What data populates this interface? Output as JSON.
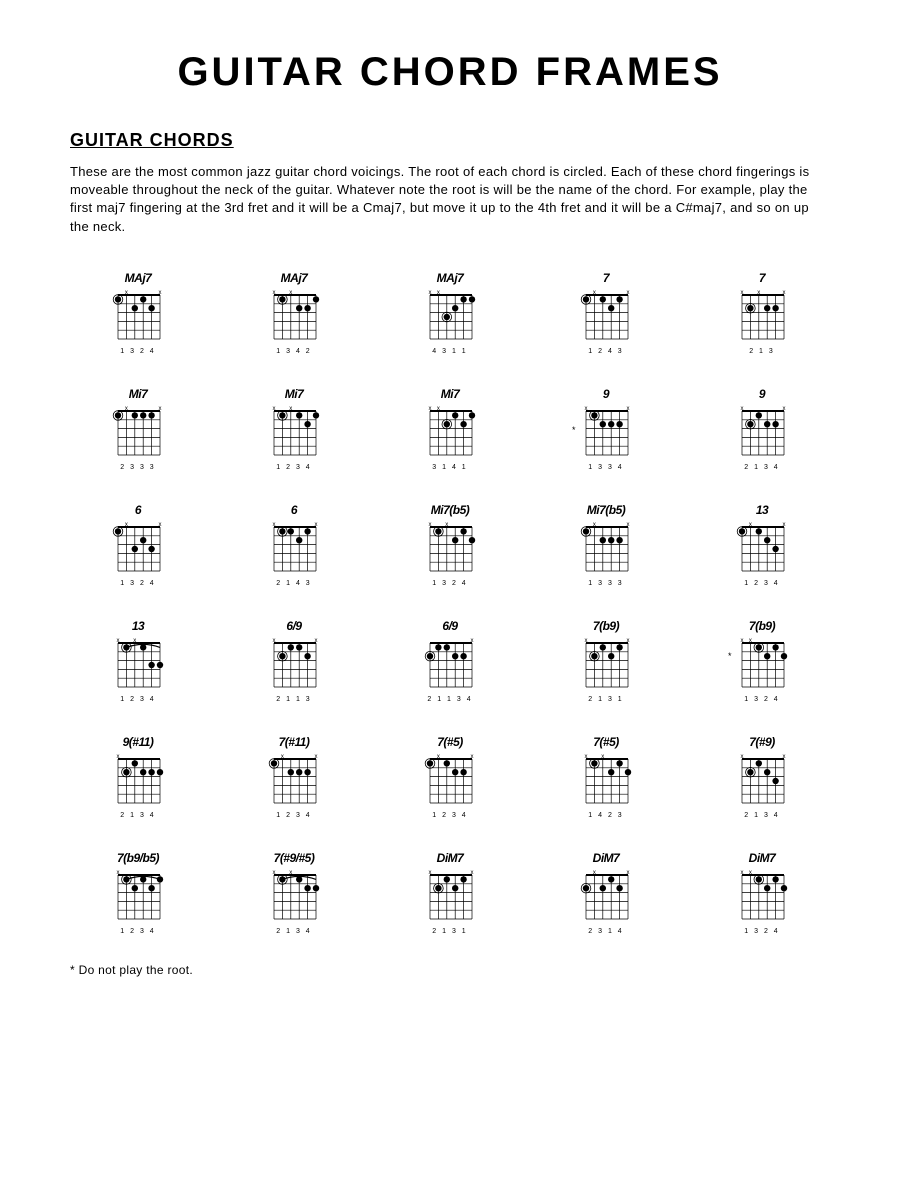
{
  "title": "GUITAR CHORD FRAMES",
  "subtitle": "GUITAR CHORDS",
  "intro": "These are the most common jazz guitar chord voicings. The root of each chord is circled. Each of these chord fingerings is moveable throughout the neck of the guitar. Whatever note the root is will be the name of the chord. For example, play the first maj7 fingering at the 3rd fret and it will be a Cmaj7, but move it up to the 4th fret and it will be a C#maj7, and so on up the neck.",
  "footnote": "* Do not play the root.",
  "diagram_style": {
    "strings": 6,
    "frets": 5,
    "width": 52,
    "height": 58,
    "line_color": "#000000",
    "dot_color": "#000000",
    "dot_radius": 3.2,
    "root_outer_radius": 4.8,
    "nut_stroke": 2,
    "grid_stroke": 0.7
  },
  "chords": [
    {
      "label": "MAj7",
      "fingers": "1 3 2 4",
      "star": false,
      "dots": [
        {
          "s": 0,
          "f": 1,
          "r": true
        },
        {
          "s": 2,
          "f": 2
        },
        {
          "s": 3,
          "f": 1
        },
        {
          "s": 4,
          "f": 2
        }
      ],
      "muted": [
        1,
        5
      ]
    },
    {
      "label": "MAj7",
      "fingers": "1 3 4 2",
      "star": false,
      "dots": [
        {
          "s": 1,
          "f": 1,
          "r": true
        },
        {
          "s": 3,
          "f": 2
        },
        {
          "s": 4,
          "f": 2
        },
        {
          "s": 5,
          "f": 1
        }
      ],
      "muted": [
        0,
        2
      ]
    },
    {
      "label": "MAj7",
      "fingers": "4 3 1 1",
      "star": false,
      "dots": [
        {
          "s": 2,
          "f": 3,
          "r": true
        },
        {
          "s": 3,
          "f": 2
        },
        {
          "s": 4,
          "f": 1
        },
        {
          "s": 5,
          "f": 1
        }
      ],
      "muted": [
        0,
        1
      ]
    },
    {
      "label": "7",
      "fingers": "1 2 4 3",
      "star": false,
      "dots": [
        {
          "s": 0,
          "f": 1,
          "r": true
        },
        {
          "s": 2,
          "f": 1
        },
        {
          "s": 3,
          "f": 2
        },
        {
          "s": 4,
          "f": 1
        }
      ],
      "muted": [
        1,
        5
      ]
    },
    {
      "label": "7",
      "fingers": "2 1 3",
      "star": false,
      "dots": [
        {
          "s": 1,
          "f": 2,
          "r": true
        },
        {
          "s": 3,
          "f": 2
        },
        {
          "s": 4,
          "f": 2
        }
      ],
      "muted": [
        0,
        2,
        5
      ]
    },
    {
      "label": "Mi7",
      "fingers": "2   3 3 3",
      "star": false,
      "dots": [
        {
          "s": 0,
          "f": 1,
          "r": true
        },
        {
          "s": 2,
          "f": 1
        },
        {
          "s": 3,
          "f": 1
        },
        {
          "s": 4,
          "f": 1
        }
      ],
      "muted": [
        1,
        5
      ]
    },
    {
      "label": "Mi7",
      "fingers": "1   2 3 4",
      "star": false,
      "dots": [
        {
          "s": 1,
          "f": 1,
          "r": true
        },
        {
          "s": 3,
          "f": 1
        },
        {
          "s": 4,
          "f": 2
        },
        {
          "s": 5,
          "f": 1
        }
      ],
      "muted": [
        0,
        2
      ]
    },
    {
      "label": "Mi7",
      "fingers": "3 1 4 1",
      "star": false,
      "dots": [
        {
          "s": 2,
          "f": 2,
          "r": true
        },
        {
          "s": 3,
          "f": 1
        },
        {
          "s": 4,
          "f": 2
        },
        {
          "s": 5,
          "f": 1
        }
      ],
      "muted": [
        0,
        1
      ]
    },
    {
      "label": "9",
      "fingers": "1 3 3 4",
      "star": true,
      "starTop": 20,
      "dots": [
        {
          "s": 1,
          "f": 1,
          "r": true
        },
        {
          "s": 2,
          "f": 2
        },
        {
          "s": 3,
          "f": 2
        },
        {
          "s": 4,
          "f": 2
        }
      ],
      "muted": [
        0,
        5
      ]
    },
    {
      "label": "9",
      "fingers": "2 1 3 4",
      "star": false,
      "dots": [
        {
          "s": 1,
          "f": 2,
          "r": true
        },
        {
          "s": 2,
          "f": 1
        },
        {
          "s": 3,
          "f": 2
        },
        {
          "s": 4,
          "f": 2
        }
      ],
      "muted": [
        0,
        5
      ]
    },
    {
      "label": "6",
      "fingers": "1 3 2 4",
      "star": false,
      "dots": [
        {
          "s": 0,
          "f": 1,
          "r": true
        },
        {
          "s": 2,
          "f": 3
        },
        {
          "s": 3,
          "f": 2
        },
        {
          "s": 4,
          "f": 3
        }
      ],
      "muted": [
        1,
        5
      ]
    },
    {
      "label": "6",
      "fingers": "2 1 4 3",
      "star": false,
      "dots": [
        {
          "s": 1,
          "f": 1,
          "r": true
        },
        {
          "s": 2,
          "f": 1
        },
        {
          "s": 3,
          "f": 2
        },
        {
          "s": 4,
          "f": 1
        }
      ],
      "muted": [
        0,
        5
      ]
    },
    {
      "label": "Mi7(b5)",
      "fingers": "1 3 2 4",
      "star": false,
      "dots": [
        {
          "s": 1,
          "f": 1,
          "r": true
        },
        {
          "s": 3,
          "f": 2
        },
        {
          "s": 4,
          "f": 1
        },
        {
          "s": 5,
          "f": 2
        }
      ],
      "muted": [
        0,
        2
      ]
    },
    {
      "label": "Mi7(b5)",
      "fingers": "1 3 3 3",
      "star": false,
      "dots": [
        {
          "s": 0,
          "f": 1,
          "r": true
        },
        {
          "s": 2,
          "f": 2
        },
        {
          "s": 3,
          "f": 2
        },
        {
          "s": 4,
          "f": 2
        }
      ],
      "muted": [
        1,
        5
      ]
    },
    {
      "label": "13",
      "fingers": "1   2 3 4",
      "star": false,
      "dots": [
        {
          "s": 0,
          "f": 1,
          "r": true
        },
        {
          "s": 2,
          "f": 1
        },
        {
          "s": 3,
          "f": 2
        },
        {
          "s": 4,
          "f": 3
        }
      ],
      "muted": [
        1,
        5
      ]
    },
    {
      "label": "13",
      "fingers": "1 2 3 4",
      "star": false,
      "dots": [
        {
          "s": 1,
          "f": 1,
          "r": true
        },
        {
          "s": 3,
          "f": 1
        },
        {
          "s": 4,
          "f": 3
        },
        {
          "s": 5,
          "f": 3
        }
      ],
      "muted": [
        0,
        2
      ],
      "barre": {
        "f": 1,
        "from": 1,
        "to": 5
      }
    },
    {
      "label": "6/9",
      "fingers": "2 1 1 3",
      "star": false,
      "dots": [
        {
          "s": 1,
          "f": 2,
          "r": true
        },
        {
          "s": 2,
          "f": 1
        },
        {
          "s": 3,
          "f": 1
        },
        {
          "s": 4,
          "f": 2
        }
      ],
      "muted": [
        0,
        5
      ]
    },
    {
      "label": "6/9",
      "fingers": "2 1 1 3 4",
      "star": false,
      "dots": [
        {
          "s": 0,
          "f": 2,
          "r": true
        },
        {
          "s": 1,
          "f": 1
        },
        {
          "s": 2,
          "f": 1
        },
        {
          "s": 3,
          "f": 2
        },
        {
          "s": 4,
          "f": 2
        }
      ],
      "muted": [
        5
      ]
    },
    {
      "label": "7(b9)",
      "fingers": "2 1 3 1",
      "star": false,
      "dots": [
        {
          "s": 1,
          "f": 2,
          "r": true
        },
        {
          "s": 2,
          "f": 1
        },
        {
          "s": 3,
          "f": 2
        },
        {
          "s": 4,
          "f": 1
        }
      ],
      "muted": [
        0,
        5
      ]
    },
    {
      "label": "7(b9)",
      "fingers": "1 3 2 4",
      "star": true,
      "starTop": 14,
      "dots": [
        {
          "s": 2,
          "f": 1,
          "r": true
        },
        {
          "s": 3,
          "f": 2
        },
        {
          "s": 4,
          "f": 1
        },
        {
          "s": 5,
          "f": 2
        }
      ],
      "muted": [
        0,
        1
      ]
    },
    {
      "label": "9(#11)",
      "fingers": "2 1 3 4",
      "star": false,
      "dots": [
        {
          "s": 1,
          "f": 2,
          "r": true
        },
        {
          "s": 2,
          "f": 1
        },
        {
          "s": 3,
          "f": 2
        },
        {
          "s": 4,
          "f": 2
        },
        {
          "s": 5,
          "f": 2
        }
      ],
      "muted": [
        0
      ]
    },
    {
      "label": "7(#11)",
      "fingers": "1 2 3 4",
      "star": false,
      "dots": [
        {
          "s": 0,
          "f": 1,
          "r": true
        },
        {
          "s": 2,
          "f": 2
        },
        {
          "s": 3,
          "f": 2
        },
        {
          "s": 4,
          "f": 2
        }
      ],
      "muted": [
        1,
        5
      ]
    },
    {
      "label": "7(#5)",
      "fingers": "1 2 3 4",
      "star": false,
      "dots": [
        {
          "s": 0,
          "f": 1,
          "r": true
        },
        {
          "s": 2,
          "f": 1
        },
        {
          "s": 3,
          "f": 2
        },
        {
          "s": 4,
          "f": 2
        }
      ],
      "muted": [
        1,
        5
      ]
    },
    {
      "label": "7(#5)",
      "fingers": "1 4 2 3",
      "star": false,
      "dots": [
        {
          "s": 1,
          "f": 1,
          "r": true
        },
        {
          "s": 3,
          "f": 2
        },
        {
          "s": 4,
          "f": 1
        },
        {
          "s": 5,
          "f": 2
        }
      ],
      "muted": [
        0,
        2
      ]
    },
    {
      "label": "7(#9)",
      "fingers": "2 1 3 4",
      "star": false,
      "dots": [
        {
          "s": 1,
          "f": 2,
          "r": true
        },
        {
          "s": 2,
          "f": 1
        },
        {
          "s": 3,
          "f": 2
        },
        {
          "s": 4,
          "f": 3
        }
      ],
      "muted": [
        0,
        5
      ]
    },
    {
      "label": "7(b9/b5)",
      "fingers": "1 2 3 4",
      "star": false,
      "dots": [
        {
          "s": 1,
          "f": 1,
          "r": true
        },
        {
          "s": 2,
          "f": 2
        },
        {
          "s": 3,
          "f": 1
        },
        {
          "s": 4,
          "f": 2
        },
        {
          "s": 5,
          "f": 1
        }
      ],
      "muted": [
        0
      ],
      "barre": {
        "f": 1,
        "from": 1,
        "to": 5
      }
    },
    {
      "label": "7(#9/#5)",
      "fingers": "2 1 3 4",
      "star": false,
      "dots": [
        {
          "s": 1,
          "f": 1,
          "r": true
        },
        {
          "s": 3,
          "f": 1
        },
        {
          "s": 4,
          "f": 2
        },
        {
          "s": 5,
          "f": 2
        }
      ],
      "muted": [
        0,
        2
      ],
      "barre": {
        "f": 1,
        "from": 1,
        "to": 5
      }
    },
    {
      "label": "DiM7",
      "fingers": "2 1 3 1",
      "star": false,
      "dots": [
        {
          "s": 1,
          "f": 2,
          "r": true
        },
        {
          "s": 2,
          "f": 1
        },
        {
          "s": 3,
          "f": 2
        },
        {
          "s": 4,
          "f": 1
        }
      ],
      "muted": [
        0,
        5
      ]
    },
    {
      "label": "DiM7",
      "fingers": "2 3 1 4",
      "star": false,
      "dots": [
        {
          "s": 0,
          "f": 2,
          "r": true
        },
        {
          "s": 2,
          "f": 2
        },
        {
          "s": 3,
          "f": 1
        },
        {
          "s": 4,
          "f": 2
        }
      ],
      "muted": [
        1,
        5
      ]
    },
    {
      "label": "DiM7",
      "fingers": "1 3 2 4",
      "star": false,
      "dots": [
        {
          "s": 2,
          "f": 1,
          "r": true
        },
        {
          "s": 3,
          "f": 2
        },
        {
          "s": 4,
          "f": 1
        },
        {
          "s": 5,
          "f": 2
        }
      ],
      "muted": [
        0,
        1
      ]
    }
  ]
}
